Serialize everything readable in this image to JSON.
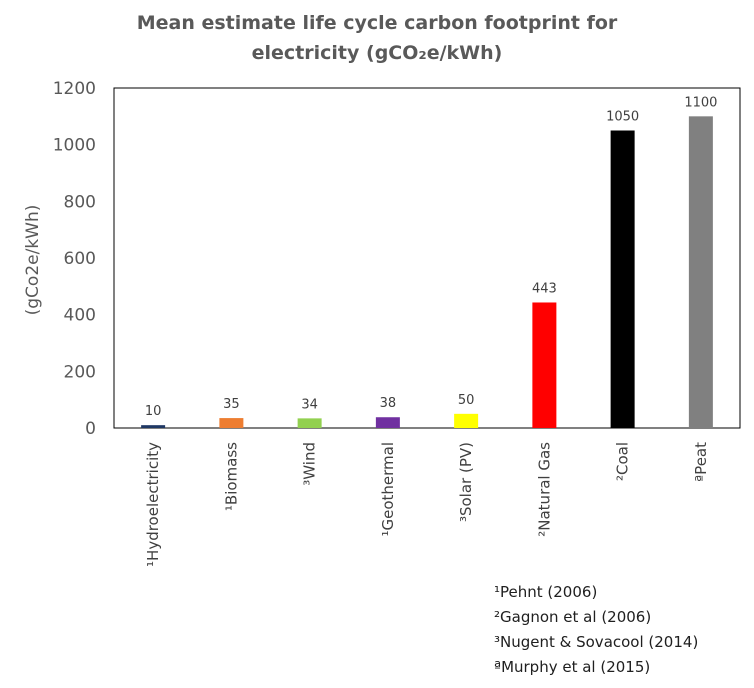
{
  "chart_data": {
    "type": "bar",
    "title_line1": "Mean estimate life cycle carbon footprint for",
    "title_line2": "electricity (gCO₂e/kWh)",
    "ylabel": "(gCo2e/kWh)",
    "xlabel": "",
    "ylim": [
      0,
      1200
    ],
    "yticks": [
      0,
      200,
      400,
      600,
      800,
      1000,
      1200
    ],
    "grid": false,
    "categories": [
      "¹Hydroelectricity",
      "¹Biomass",
      "³Wind",
      "¹Geothermal",
      "³Solar (PV)",
      "²Natural Gas",
      "²Coal",
      "ªPeat"
    ],
    "values": [
      10,
      35,
      34,
      38,
      50,
      443,
      1050,
      1100
    ],
    "data_labels": [
      "10",
      "35",
      "34",
      "38",
      "50",
      "443",
      "1050",
      "1100"
    ],
    "colors": [
      "#1f3864",
      "#ed7d31",
      "#92d050",
      "#7030a0",
      "#ffff00",
      "#ff0000",
      "#000000",
      "#808080"
    ]
  },
  "references": [
    "¹Pehnt (2006)",
    "²Gagnon et al (2006)",
    "³Nugent & Sovacool (2014)",
    "ªMurphy et al (2015)"
  ]
}
